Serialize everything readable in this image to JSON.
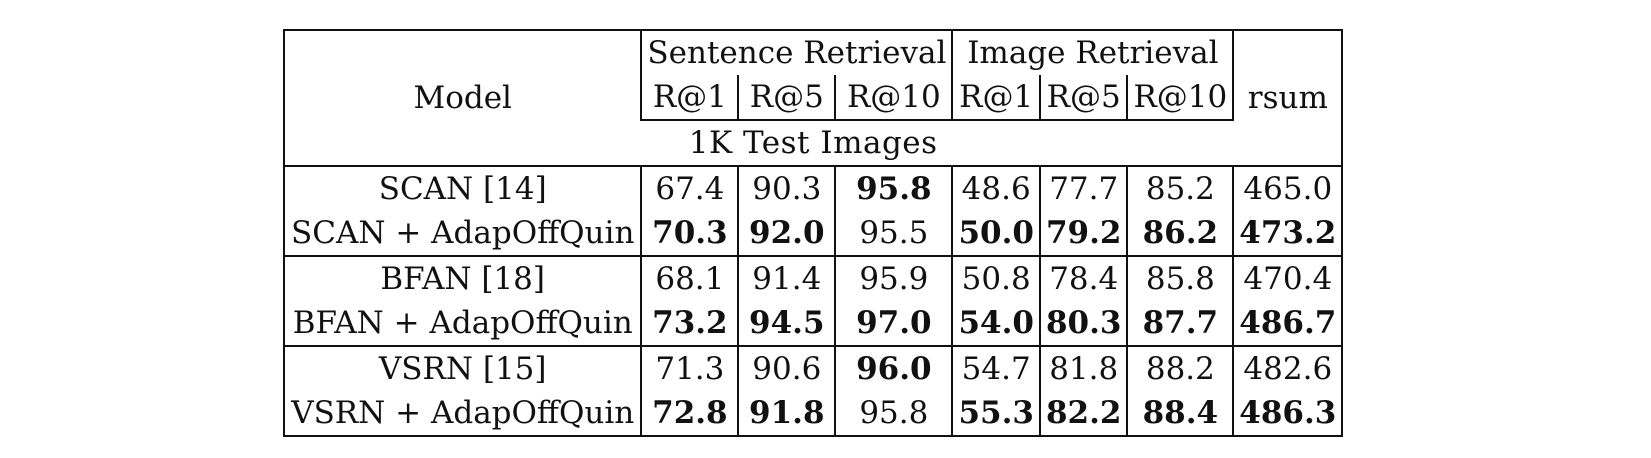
{
  "table": {
    "header": {
      "model": "Model",
      "group_sentence": "Sentence Retrieval",
      "group_image": "Image Retrieval",
      "rsum": "rsum",
      "metrics": [
        "R@1",
        "R@5",
        "R@10",
        "R@1",
        "R@5",
        "R@10"
      ]
    },
    "section_title": "1K Test Images",
    "rows": [
      {
        "model": "SCAN [14]",
        "values": [
          "67.4",
          "90.3",
          "95.8",
          "48.6",
          "77.7",
          "85.2",
          "465.0"
        ],
        "bold": [
          false,
          false,
          true,
          false,
          false,
          false,
          false
        ]
      },
      {
        "model": "SCAN + AdapOffQuin",
        "values": [
          "70.3",
          "92.0",
          "95.5",
          "50.0",
          "79.2",
          "86.2",
          "473.2"
        ],
        "bold": [
          true,
          true,
          false,
          true,
          true,
          true,
          true
        ]
      },
      {
        "model": "BFAN [18]",
        "values": [
          "68.1",
          "91.4",
          "95.9",
          "50.8",
          "78.4",
          "85.8",
          "470.4"
        ],
        "bold": [
          false,
          false,
          false,
          false,
          false,
          false,
          false
        ]
      },
      {
        "model": "BFAN + AdapOffQuin",
        "values": [
          "73.2",
          "94.5",
          "97.0",
          "54.0",
          "80.3",
          "87.7",
          "486.7"
        ],
        "bold": [
          true,
          true,
          true,
          true,
          true,
          true,
          true
        ]
      },
      {
        "model": "VSRN [15]",
        "values": [
          "71.3",
          "90.6",
          "96.0",
          "54.7",
          "81.8",
          "88.2",
          "482.6"
        ],
        "bold": [
          false,
          false,
          true,
          false,
          false,
          false,
          false
        ]
      },
      {
        "model": "VSRN + AdapOffQuin",
        "values": [
          "72.8",
          "91.8",
          "95.8",
          "55.3",
          "82.2",
          "88.4",
          "486.3"
        ],
        "bold": [
          true,
          true,
          false,
          true,
          true,
          true,
          true
        ]
      }
    ]
  }
}
